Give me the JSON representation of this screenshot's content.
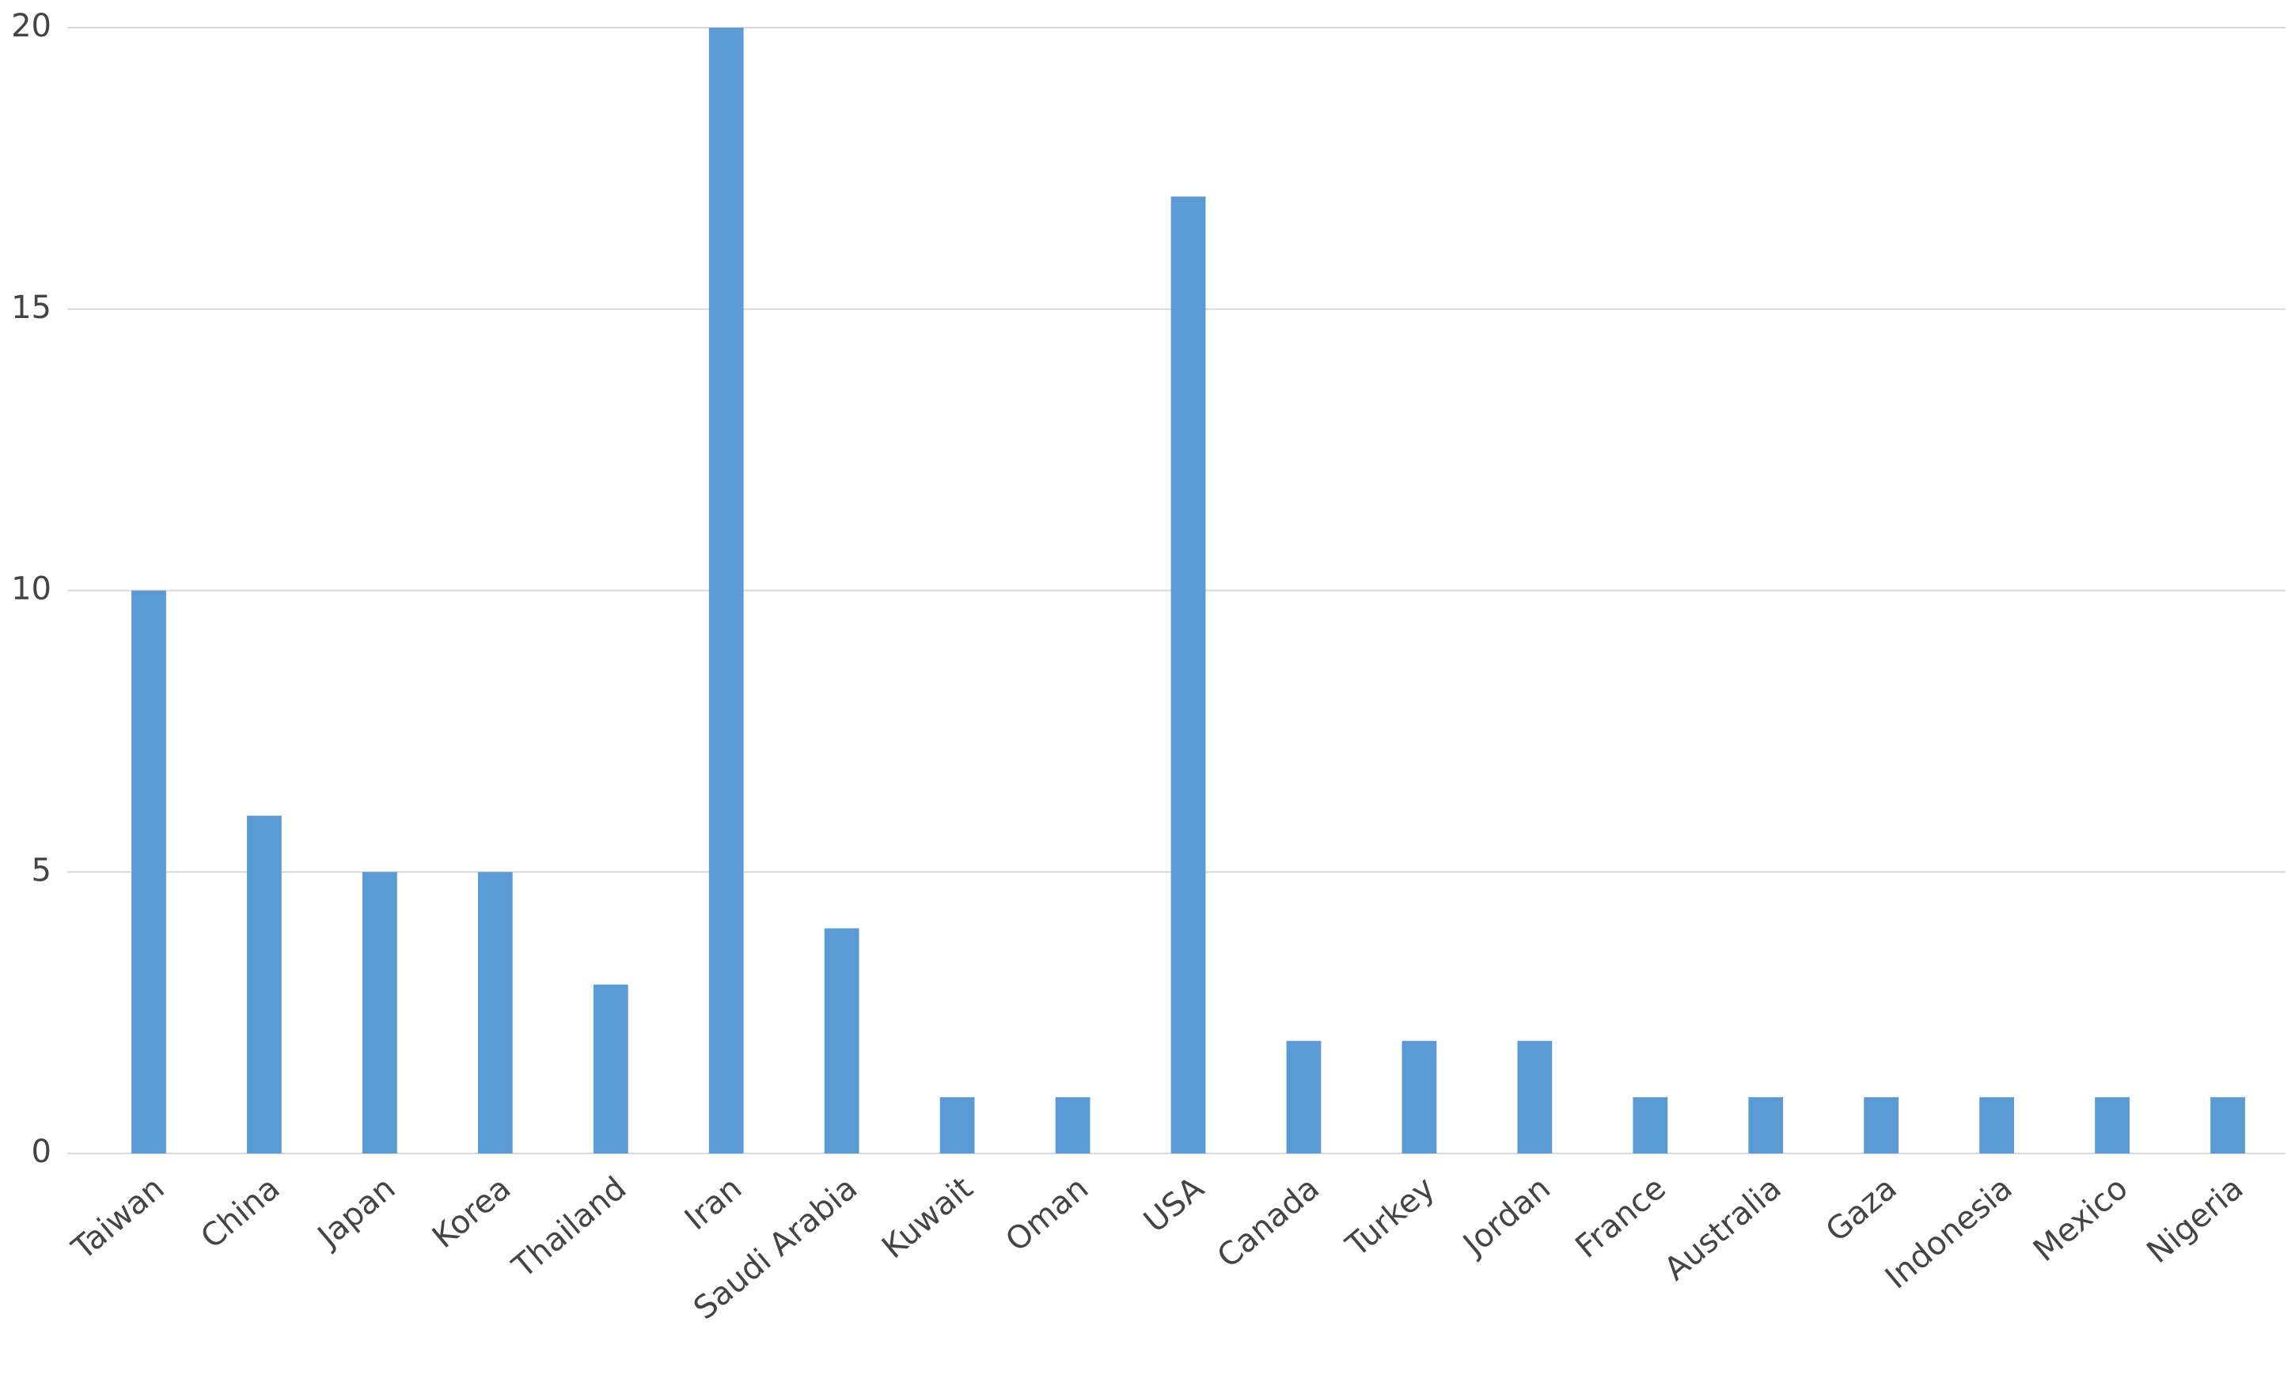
{
  "chart_data": {
    "type": "bar",
    "categories": [
      "Taiwan",
      "China",
      "Japan",
      "Korea",
      "Thailand",
      "Iran",
      "Saudi Arabia",
      "Kuwait",
      "Oman",
      "USA",
      "Canada",
      "Turkey",
      "Jordan",
      "France",
      "Australia",
      "Gaza",
      "Indonesia",
      "Mexico",
      "Nigeria"
    ],
    "values": [
      10,
      6,
      5,
      5,
      3,
      20,
      4,
      1,
      1,
      17,
      2,
      2,
      2,
      1,
      1,
      1,
      1,
      1,
      1
    ],
    "color": "#5b9bd5",
    "ylim": [
      0,
      20
    ],
    "yticks": [
      0,
      5,
      10,
      15,
      20
    ],
    "grid": true
  }
}
